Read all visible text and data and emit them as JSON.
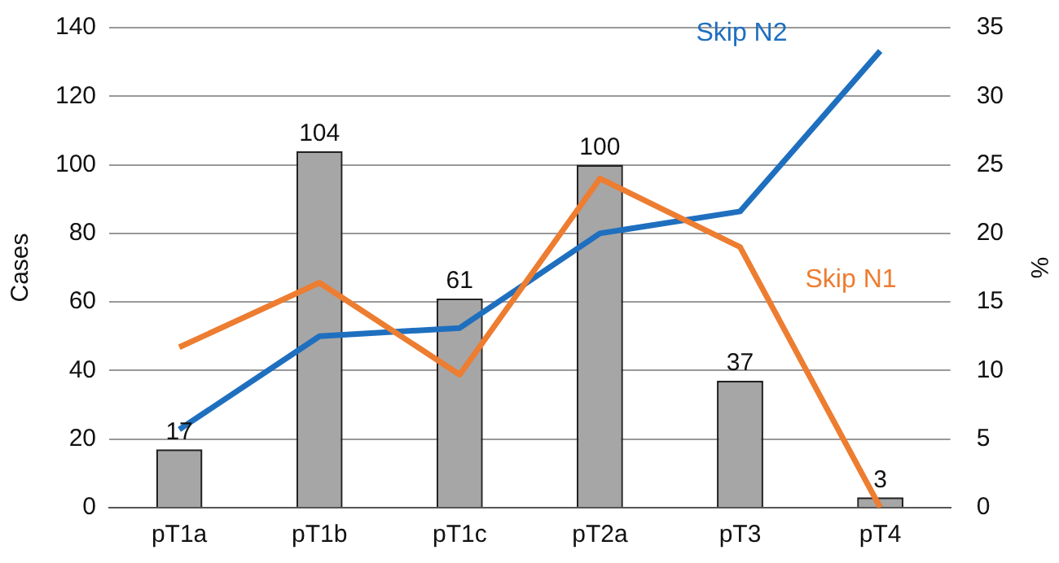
{
  "chart_data": {
    "type": "bar",
    "ylabel": "Cases",
    "y2label": "%",
    "categories": [
      "pT1a",
      "pT1b",
      "pT1c",
      "pT2a",
      "pT3",
      "pT4"
    ],
    "series": [
      {
        "color": "#a6a6a6",
        "values": [
          17,
          104,
          61,
          100,
          37,
          3
        ],
        "value_labels": [
          "17",
          "104",
          "61",
          "100",
          "37",
          "3"
        ]
      },
      {
        "type": "line",
        "name": "Skip N1",
        "color": "#ed7d31",
        "axis": "y2",
        "values": [
          11.7,
          16.4,
          9.7,
          24.0,
          19.0,
          0
        ]
      },
      {
        "type": "line",
        "name": "Skip N2",
        "color": "#1f6fbf",
        "axis": "y2",
        "values": [
          5.7,
          12.5,
          13.1,
          20.0,
          21.6,
          33.3
        ]
      }
    ],
    "ylim": [
      0,
      140
    ],
    "yticks": [
      0,
      20,
      40,
      60,
      80,
      100,
      120,
      140
    ],
    "y2lim": [
      0,
      35
    ],
    "y2ticks": [
      0,
      5,
      10,
      15,
      20,
      25,
      30,
      35
    ],
    "grid": "y",
    "legend": false,
    "marker": "none",
    "line_style": "solid"
  }
}
